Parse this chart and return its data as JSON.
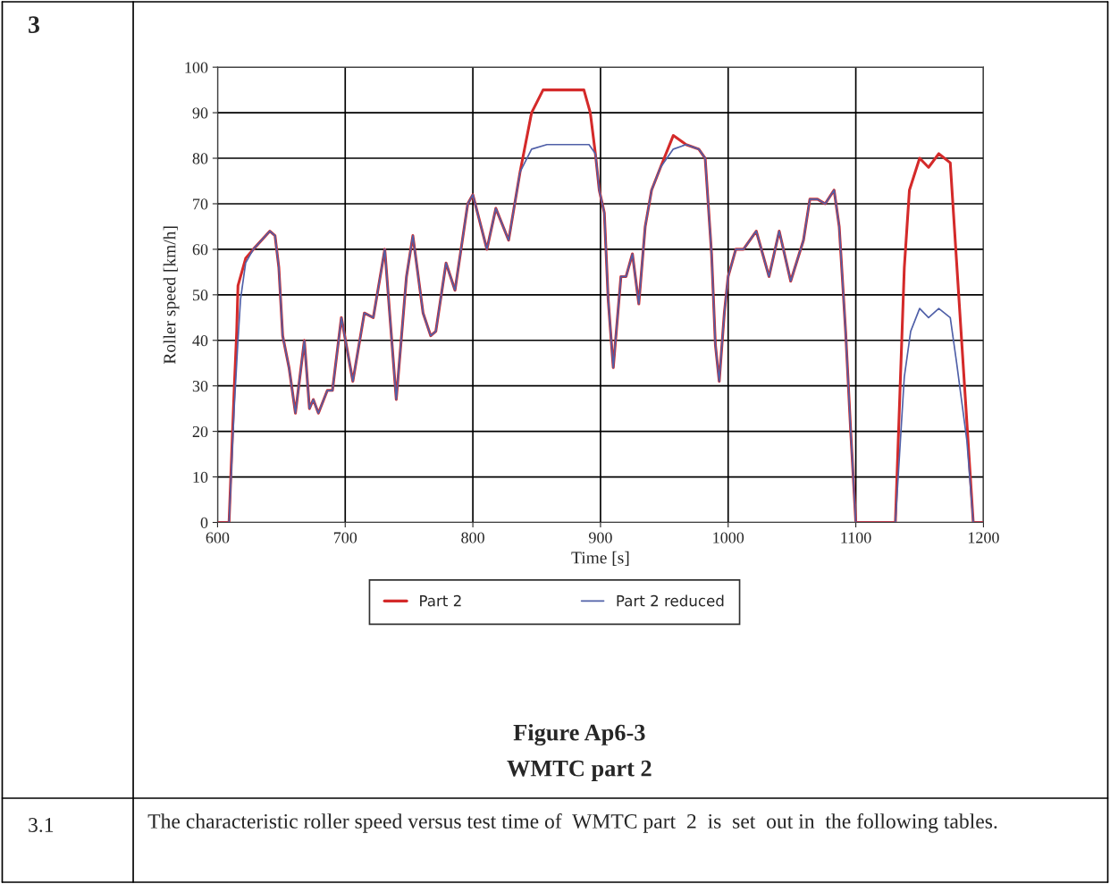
{
  "chart_data": {
    "type": "line",
    "title": "Figure Ap6-3",
    "subtitle": "WMTC part 2",
    "xlabel": "Time [s]",
    "ylabel": "Roller speed [km/h]",
    "xlim": [
      600,
      1200
    ],
    "xticks": [
      600,
      700,
      800,
      900,
      1000,
      1100,
      1200
    ],
    "ylim": [
      0,
      100
    ],
    "yticks": [
      0,
      10,
      20,
      30,
      40,
      50,
      60,
      70,
      80,
      90,
      100
    ],
    "grid": true,
    "legend": "bottom",
    "line_style": "solid",
    "annotations": [
      "3",
      "3.1",
      "The characteristic roller speed versus test time of  WMTC part  2  is  set  out in  the following tables."
    ],
    "series": [
      {
        "name": "Part 2",
        "color": "#d42a2a",
        "x": [
          600,
          609,
          613,
          615,
          616,
          622,
          628,
          641,
          645,
          648,
          651,
          656,
          661,
          668,
          672,
          675,
          679,
          686,
          690,
          697,
          706,
          715,
          722,
          731,
          740,
          748,
          753,
          761,
          767,
          771,
          779,
          786,
          796,
          800,
          811,
          818,
          828,
          837,
          846,
          855,
          870,
          887,
          892,
          896,
          899,
          903,
          906,
          910,
          916,
          920,
          925,
          930,
          935,
          940,
          947,
          957,
          967,
          977,
          982,
          987,
          990,
          993,
          997,
          1000,
          1006,
          1012,
          1022,
          1032,
          1040,
          1049,
          1059,
          1064,
          1070,
          1076,
          1083,
          1087,
          1092,
          1096,
          1100,
          1131,
          1138,
          1142,
          1150,
          1157,
          1165,
          1174,
          1179,
          1187,
          1192,
          1200
        ],
        "values": [
          0,
          0,
          29,
          42,
          52,
          58,
          60,
          64,
          63,
          56,
          41,
          34,
          24,
          40,
          25,
          27,
          24,
          29,
          29,
          45,
          31,
          46,
          45,
          60,
          27,
          54,
          63,
          46,
          41,
          42,
          57,
          51,
          70,
          72,
          60,
          69,
          62,
          77,
          90,
          95,
          95,
          95,
          90,
          81,
          73,
          68,
          49,
          34,
          54,
          54,
          59,
          48,
          65,
          73,
          78,
          85,
          83,
          82,
          80,
          59,
          39,
          31,
          46,
          54,
          60,
          60,
          64,
          54,
          64,
          53,
          62,
          71,
          71,
          70,
          73,
          65,
          42,
          20,
          0,
          0,
          56,
          73,
          80,
          78,
          81,
          79,
          57,
          22,
          0,
          0
        ]
      },
      {
        "name": "Part 2 reduced",
        "color": "#5060a8",
        "x": [
          600,
          609,
          613,
          615,
          616,
          618,
          622,
          628,
          641,
          645,
          648,
          651,
          656,
          661,
          668,
          672,
          675,
          679,
          686,
          690,
          697,
          706,
          715,
          722,
          731,
          740,
          748,
          753,
          761,
          767,
          771,
          779,
          786,
          796,
          800,
          811,
          818,
          828,
          837,
          846,
          858,
          870,
          887,
          891,
          896,
          899,
          903,
          906,
          910,
          916,
          920,
          925,
          930,
          935,
          940,
          947,
          957,
          967,
          977,
          982,
          987,
          990,
          993,
          997,
          1000,
          1006,
          1012,
          1022,
          1032,
          1040,
          1049,
          1059,
          1064,
          1070,
          1076,
          1083,
          1087,
          1092,
          1096,
          1100,
          1131,
          1138,
          1143,
          1150,
          1157,
          1165,
          1174,
          1179,
          1187,
          1192,
          1200
        ],
        "values": [
          0,
          0,
          25,
          35,
          40,
          49,
          57,
          60,
          64,
          63,
          56,
          41,
          34,
          24,
          40,
          25,
          27,
          24,
          29,
          29,
          45,
          31,
          46,
          45,
          60,
          27,
          54,
          63,
          46,
          41,
          42,
          57,
          51,
          70,
          72,
          60,
          69,
          62,
          77,
          82,
          83,
          83,
          83,
          83,
          81,
          73,
          68,
          49,
          34,
          54,
          54,
          59,
          48,
          65,
          73,
          78,
          82,
          83,
          82,
          80,
          59,
          39,
          31,
          46,
          54,
          60,
          60,
          64,
          54,
          64,
          53,
          62,
          71,
          71,
          70,
          73,
          65,
          42,
          20,
          0,
          0,
          32,
          42,
          47,
          45,
          47,
          45,
          35,
          18,
          0,
          0
        ]
      }
    ]
  }
}
